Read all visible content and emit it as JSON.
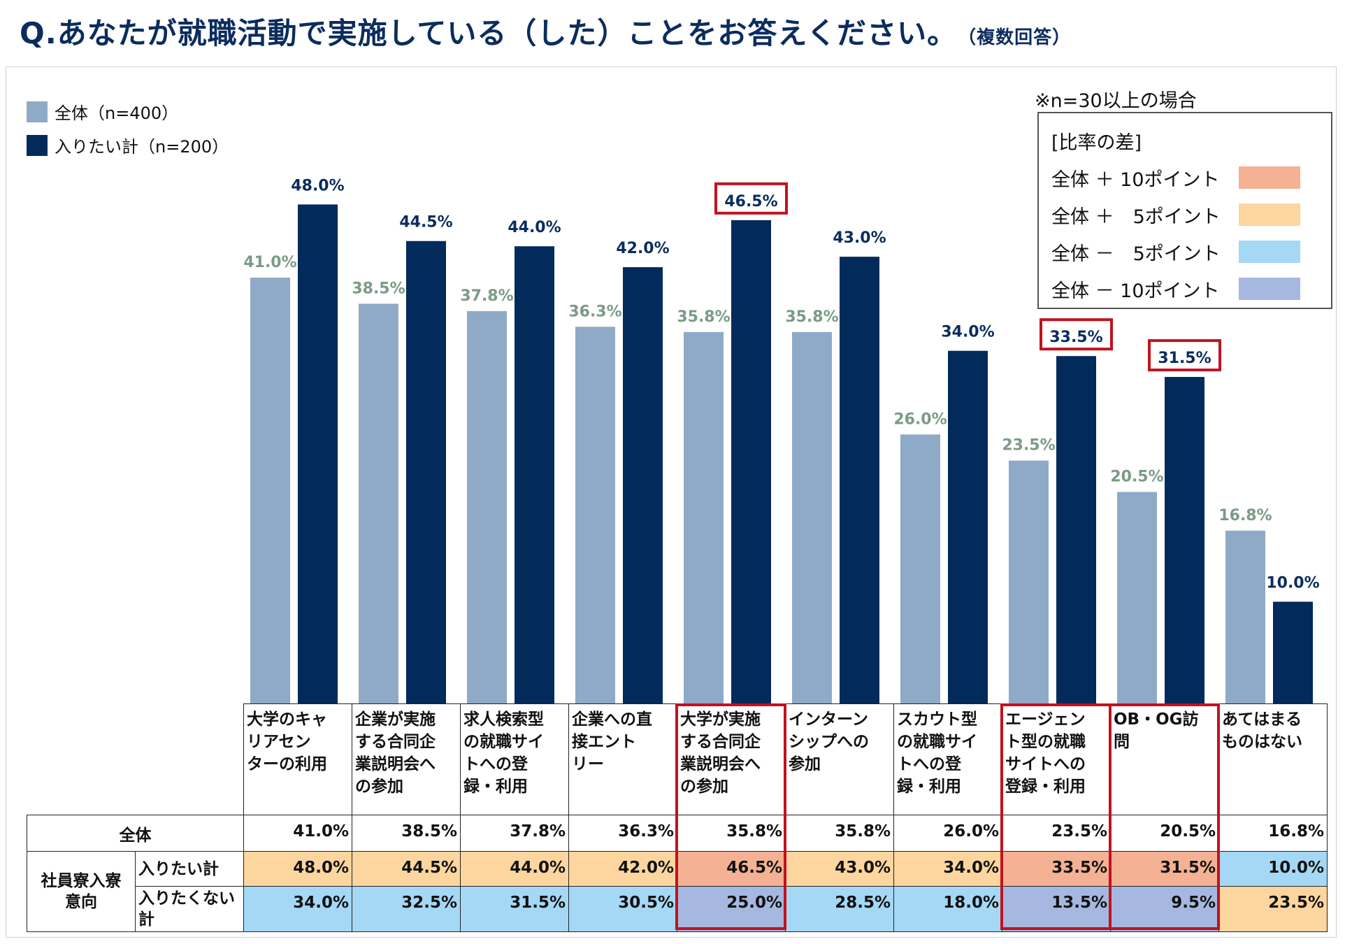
{
  "title": "Q.あなたが就職活動で実施している（した）ことをお答えください。",
  "title_note": "（複数回答）",
  "legend": [
    {
      "label": "全体（n=400）",
      "color": "#8faac6"
    },
    {
      "label": "入りたい計（n=200）",
      "color": "#022a5a"
    }
  ],
  "note": "※n=30以上の場合",
  "diff_legend": {
    "title": "[比率の差]",
    "items": [
      {
        "label": "全体 ＋ 10ポイント",
        "color": "#f4b193"
      },
      {
        "label": "全体 ＋　5ポイント",
        "color": "#fcd69e"
      },
      {
        "label": "全体 －　5ポイント",
        "color": "#a5d8f4"
      },
      {
        "label": "全体 － 10ポイント",
        "color": "#a6b8e0"
      }
    ]
  },
  "colors": {
    "all_bar": "#8faac6",
    "want_bar": "#022a5a",
    "all_label": "#7a9b86",
    "want_label": "#0b2c5e",
    "highlight": "#c1121f",
    "plus10": "#f4b193",
    "plus5": "#fcd69e",
    "minus5": "#a5d8f4",
    "minus10": "#a6b8e0"
  },
  "chart_data": {
    "type": "bar",
    "title": "Q.あなたが就職活動で実施している（した）ことをお答えください。",
    "categories": [
      "大学のキャリアセンターの利用",
      "企業が実施する合同企業説明会への参加",
      "求人検索型の就職サイトへの登録・利用",
      "企業への直接エントリー",
      "大学が実施する合同企業説明会への参加",
      "インターンシップへの参加",
      "スカウト型の就職サイトへの登録・利用",
      "エージェント型の就職サイトへの登録・利用",
      "OB・OG訪問",
      "あてはまるものはない"
    ],
    "series": [
      {
        "name": "全体（n=400）",
        "values": [
          41.0,
          38.5,
          37.8,
          36.3,
          35.8,
          35.8,
          26.0,
          23.5,
          20.5,
          16.8
        ]
      },
      {
        "name": "入りたい計（n=200）",
        "values": [
          48.0,
          44.5,
          44.0,
          42.0,
          46.5,
          43.0,
          34.0,
          33.5,
          31.5,
          10.0
        ]
      }
    ],
    "ylim": [
      0,
      50
    ],
    "highlighted_indices": [
      4,
      7,
      8
    ]
  },
  "table": {
    "headers": [
      [
        "大学のキャ",
        "リアセン",
        "ターの利用"
      ],
      [
        "企業が実施",
        "する合同企",
        "業説明会へ",
        "の参加"
      ],
      [
        "求人検索型",
        "の就職サイ",
        "トへの登",
        "録・利用"
      ],
      [
        "企業への直",
        "接エント",
        "リー"
      ],
      [
        "大学が実施",
        "する合同企",
        "業説明会へ",
        "の参加"
      ],
      [
        "インターン",
        "シップへの",
        "参加"
      ],
      [
        "スカウト型",
        "の就職サイ",
        "トへの登",
        "録・利用"
      ],
      [
        "エージェン",
        "ト型の就職",
        "サイトへの",
        "登録・利用"
      ],
      [
        "OB・OG訪",
        "問"
      ],
      [
        "あてはまる",
        "ものはない"
      ]
    ],
    "rows": [
      {
        "group": "全体",
        "label": "",
        "values": [
          "41.0%",
          "38.5%",
          "37.8%",
          "36.3%",
          "35.8%",
          "35.8%",
          "26.0%",
          "23.5%",
          "20.5%",
          "16.8%"
        ],
        "levels": [
          "none",
          "none",
          "none",
          "none",
          "none",
          "none",
          "none",
          "none",
          "none",
          "none"
        ]
      },
      {
        "group": "社員寮入寮意向",
        "label": "入りたい計",
        "values": [
          "48.0%",
          "44.5%",
          "44.0%",
          "42.0%",
          "46.5%",
          "43.0%",
          "34.0%",
          "33.5%",
          "31.5%",
          "10.0%"
        ],
        "levels": [
          "plus5",
          "plus5",
          "plus5",
          "plus5",
          "plus10",
          "plus5",
          "plus5",
          "plus10",
          "plus10",
          "minus5"
        ]
      },
      {
        "group": "社員寮入寮意向",
        "label": "入りたくない計",
        "values": [
          "34.0%",
          "32.5%",
          "31.5%",
          "30.5%",
          "25.0%",
          "28.5%",
          "18.0%",
          "13.5%",
          "9.5%",
          "23.5%"
        ],
        "levels": [
          "minus5",
          "minus5",
          "minus5",
          "minus5",
          "minus10",
          "minus5",
          "minus5",
          "minus10",
          "minus10",
          "plus5"
        ]
      }
    ]
  }
}
